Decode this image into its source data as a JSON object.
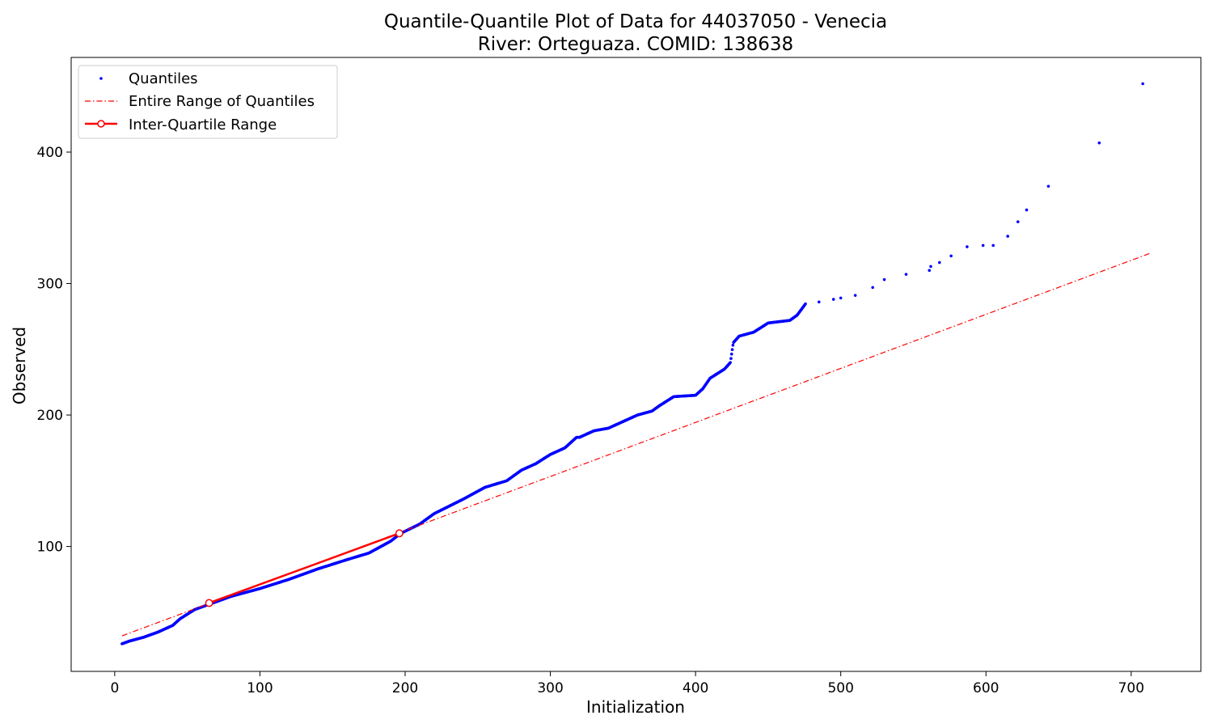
{
  "chart_data": {
    "type": "scatter",
    "title": "Quantile-Quantile Plot of Data for 44037050 - Venecia",
    "subtitle": "River: Orteguaza. COMID: 138638",
    "xlabel": "Initialization",
    "ylabel": "Observed",
    "xlim": [
      -30,
      748
    ],
    "ylim": [
      5,
      472
    ],
    "xticks": [
      0,
      100,
      200,
      300,
      400,
      500,
      600,
      700
    ],
    "yticks": [
      100,
      200,
      300,
      400
    ],
    "grid": false,
    "legend_position": "top-left",
    "colors": {
      "quantiles": "#0000ff",
      "entire_range": "#ff0000",
      "iqr": "#ff0000"
    },
    "series": [
      {
        "name": "Quantiles",
        "kind": "points",
        "curve": [
          [
            5,
            26
          ],
          [
            10,
            28
          ],
          [
            20,
            31
          ],
          [
            30,
            35
          ],
          [
            40,
            40
          ],
          [
            45,
            45
          ],
          [
            55,
            52
          ],
          [
            65,
            56
          ],
          [
            80,
            62
          ],
          [
            100,
            68
          ],
          [
            120,
            75
          ],
          [
            140,
            83
          ],
          [
            160,
            90
          ],
          [
            175,
            95
          ],
          [
            190,
            104
          ],
          [
            197,
            110
          ],
          [
            210,
            117
          ],
          [
            220,
            125
          ],
          [
            240,
            136
          ],
          [
            255,
            145
          ],
          [
            270,
            150
          ],
          [
            280,
            158
          ],
          [
            290,
            163
          ],
          [
            300,
            170
          ],
          [
            310,
            175
          ],
          [
            318,
            183
          ],
          [
            320,
            183
          ],
          [
            330,
            188
          ],
          [
            340,
            190
          ],
          [
            350,
            195
          ],
          [
            360,
            200
          ],
          [
            370,
            203
          ],
          [
            375,
            207
          ],
          [
            385,
            214
          ],
          [
            400,
            215
          ],
          [
            405,
            220
          ],
          [
            410,
            228
          ],
          [
            420,
            235
          ],
          [
            424,
            240
          ],
          [
            426,
            255
          ],
          [
            430,
            260
          ],
          [
            440,
            263
          ],
          [
            450,
            270
          ],
          [
            465,
            272
          ],
          [
            470,
            276
          ],
          [
            476,
            285
          ]
        ],
        "sparse": [
          [
            485,
            286
          ],
          [
            495,
            288
          ],
          [
            500,
            289
          ],
          [
            510,
            291
          ],
          [
            522,
            297
          ],
          [
            530,
            303
          ],
          [
            545,
            307
          ],
          [
            561,
            310
          ],
          [
            562,
            313
          ],
          [
            568,
            316
          ],
          [
            576,
            321
          ],
          [
            587,
            328
          ],
          [
            598,
            329
          ],
          [
            605,
            329
          ],
          [
            615,
            336
          ],
          [
            622,
            347
          ],
          [
            628,
            356
          ],
          [
            643,
            374
          ],
          [
            678,
            407
          ],
          [
            708,
            452
          ]
        ]
      },
      {
        "name": "Entire Range of Quantiles",
        "kind": "dashdot-line",
        "points": [
          [
            5,
            32
          ],
          [
            713,
            323
          ]
        ]
      },
      {
        "name": "Inter-Quartile Range",
        "kind": "line-with-markers",
        "points": [
          [
            65,
            57
          ],
          [
            196,
            110
          ]
        ]
      }
    ]
  }
}
